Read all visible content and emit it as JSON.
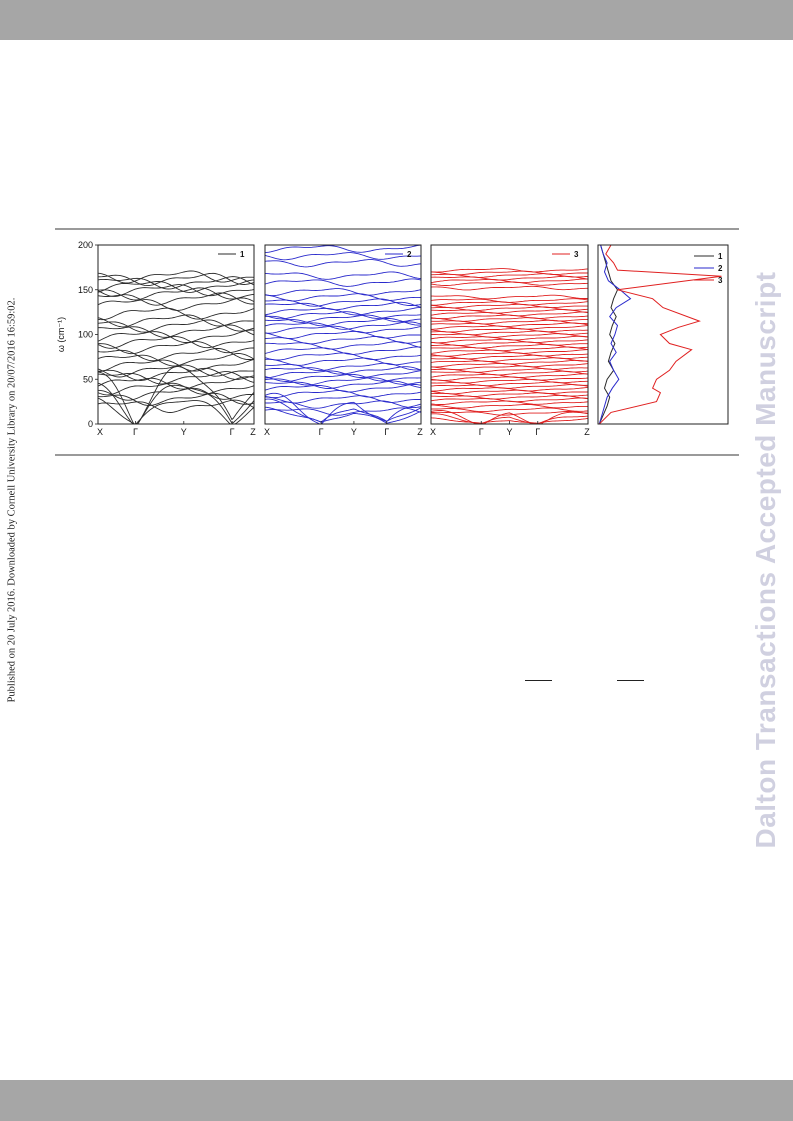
{
  "page": {
    "side_note": "Published on 20 July 2016. Downloaded by Cornell University Library on 20/07/2016 16:59:02.",
    "watermark": "Dalton Transactions Accepted Manuscript"
  },
  "colors": {
    "series_1": "#2b2b2b",
    "series_2": "#2a2acc",
    "series_3": "#e02020",
    "bars": "#a6a6a6"
  },
  "chart_data": [
    {
      "type": "line",
      "panel": "1",
      "ylabel": "ω (cm⁻¹)",
      "ylim": [
        0,
        200
      ],
      "yticks": [
        0,
        50,
        100,
        150,
        200
      ],
      "xticks": [
        "X",
        "Γ",
        "Y",
        "Γ",
        "Z"
      ],
      "tick_pos": [
        0,
        0.24,
        0.55,
        0.86,
        1.0
      ],
      "legend": "1",
      "legend_loc": "top-right",
      "color": "#2b2b2b",
      "acoustic": [
        [
          0,
          62,
          5
        ],
        [
          0,
          45,
          4
        ],
        [
          0,
          28,
          3
        ]
      ],
      "optical": [
        20,
        28,
        34,
        40,
        46,
        52,
        56,
        60,
        66,
        72,
        78,
        86,
        92,
        98,
        104,
        110,
        116,
        124,
        134,
        140,
        146,
        150,
        154,
        158,
        162,
        165
      ],
      "optical_wiggle": 5
    },
    {
      "type": "line",
      "panel": "2",
      "ylim": [
        0,
        200
      ],
      "xticks": [
        "X",
        "Γ",
        "Y",
        "Γ",
        "Z"
      ],
      "tick_pos": [
        0,
        0.36,
        0.57,
        0.78,
        1.0
      ],
      "legend": "2",
      "legend_loc": "top-right",
      "color": "#2a2acc",
      "acoustic": [
        [
          0,
          32,
          4
        ],
        [
          0,
          25,
          3
        ],
        [
          0,
          17,
          2
        ]
      ],
      "optical": [
        14,
        22,
        28,
        34,
        40,
        44,
        48,
        52,
        56,
        60,
        64,
        70,
        76,
        82,
        88,
        94,
        100,
        106,
        110,
        114,
        118,
        122,
        126,
        132,
        136,
        142,
        148,
        158,
        166,
        180,
        188,
        196
      ],
      "optical_wiggle": 3
    },
    {
      "type": "line",
      "panel": "3",
      "ylim": [
        0,
        200
      ],
      "xticks": [
        "X",
        "Γ",
        "Y",
        "Γ",
        "Z"
      ],
      "tick_pos": [
        0,
        0.32,
        0.5,
        0.68,
        1.0
      ],
      "legend": "3",
      "legend_loc": "top-right",
      "color": "#e02020",
      "acoustic": [
        [
          0,
          14,
          2
        ],
        [
          0,
          10,
          1.5
        ],
        [
          0,
          6,
          1
        ]
      ],
      "optical": [
        12,
        16,
        20,
        24,
        27,
        30,
        33,
        36,
        39,
        42,
        45,
        48,
        51,
        54,
        57,
        60,
        63,
        66,
        69,
        72,
        75,
        78,
        81,
        84,
        87,
        90,
        93,
        96,
        99,
        102,
        105,
        108,
        111,
        114,
        117,
        120,
        123,
        126,
        129,
        132,
        135,
        138,
        142,
        152,
        157,
        160,
        163,
        166,
        169,
        172
      ],
      "optical_wiggle": 1.5
    },
    {
      "type": "line",
      "panel": "dos",
      "ylim": [
        0,
        200
      ],
      "legend_loc": "top-right",
      "series": [
        {
          "name": "1",
          "color": "#2b2b2b",
          "x": [
            0.01,
            0.04,
            0.07,
            0.09,
            0.05,
            0.07,
            0.12,
            0.08,
            0.1,
            0.13,
            0.09,
            0.11,
            0.14,
            0.1,
            0.12,
            0.15,
            0.1,
            0.08,
            0.06,
            0.04,
            0.02
          ],
          "y": [
            0,
            10,
            20,
            30,
            40,
            50,
            60,
            70,
            80,
            90,
            100,
            110,
            120,
            130,
            140,
            150,
            160,
            170,
            180,
            190,
            200
          ]
        },
        {
          "name": "2",
          "color": "#2a2acc",
          "x": [
            0.01,
            0.03,
            0.05,
            0.07,
            0.11,
            0.16,
            0.12,
            0.09,
            0.14,
            0.1,
            0.13,
            0.15,
            0.09,
            0.14,
            0.25,
            0.17,
            0.08,
            0.05,
            0.07,
            0.04,
            0.02
          ],
          "y": [
            0,
            10,
            20,
            30,
            40,
            50,
            60,
            70,
            80,
            90,
            100,
            110,
            120,
            130,
            140,
            150,
            160,
            170,
            180,
            190,
            200
          ]
        },
        {
          "name": "3",
          "color": "#e02020",
          "x": [
            0.01,
            0.1,
            0.45,
            0.48,
            0.42,
            0.45,
            0.55,
            0.6,
            0.72,
            0.55,
            0.48,
            0.62,
            0.78,
            0.5,
            0.42,
            0.15,
            0.95,
            0.15,
            0.12,
            0.06,
            0.1
          ],
          "y": [
            0,
            13,
            25,
            35,
            40,
            50,
            60,
            70,
            83,
            90,
            100,
            108,
            115,
            130,
            140,
            150,
            165,
            172,
            180,
            190,
            200
          ]
        }
      ]
    }
  ]
}
